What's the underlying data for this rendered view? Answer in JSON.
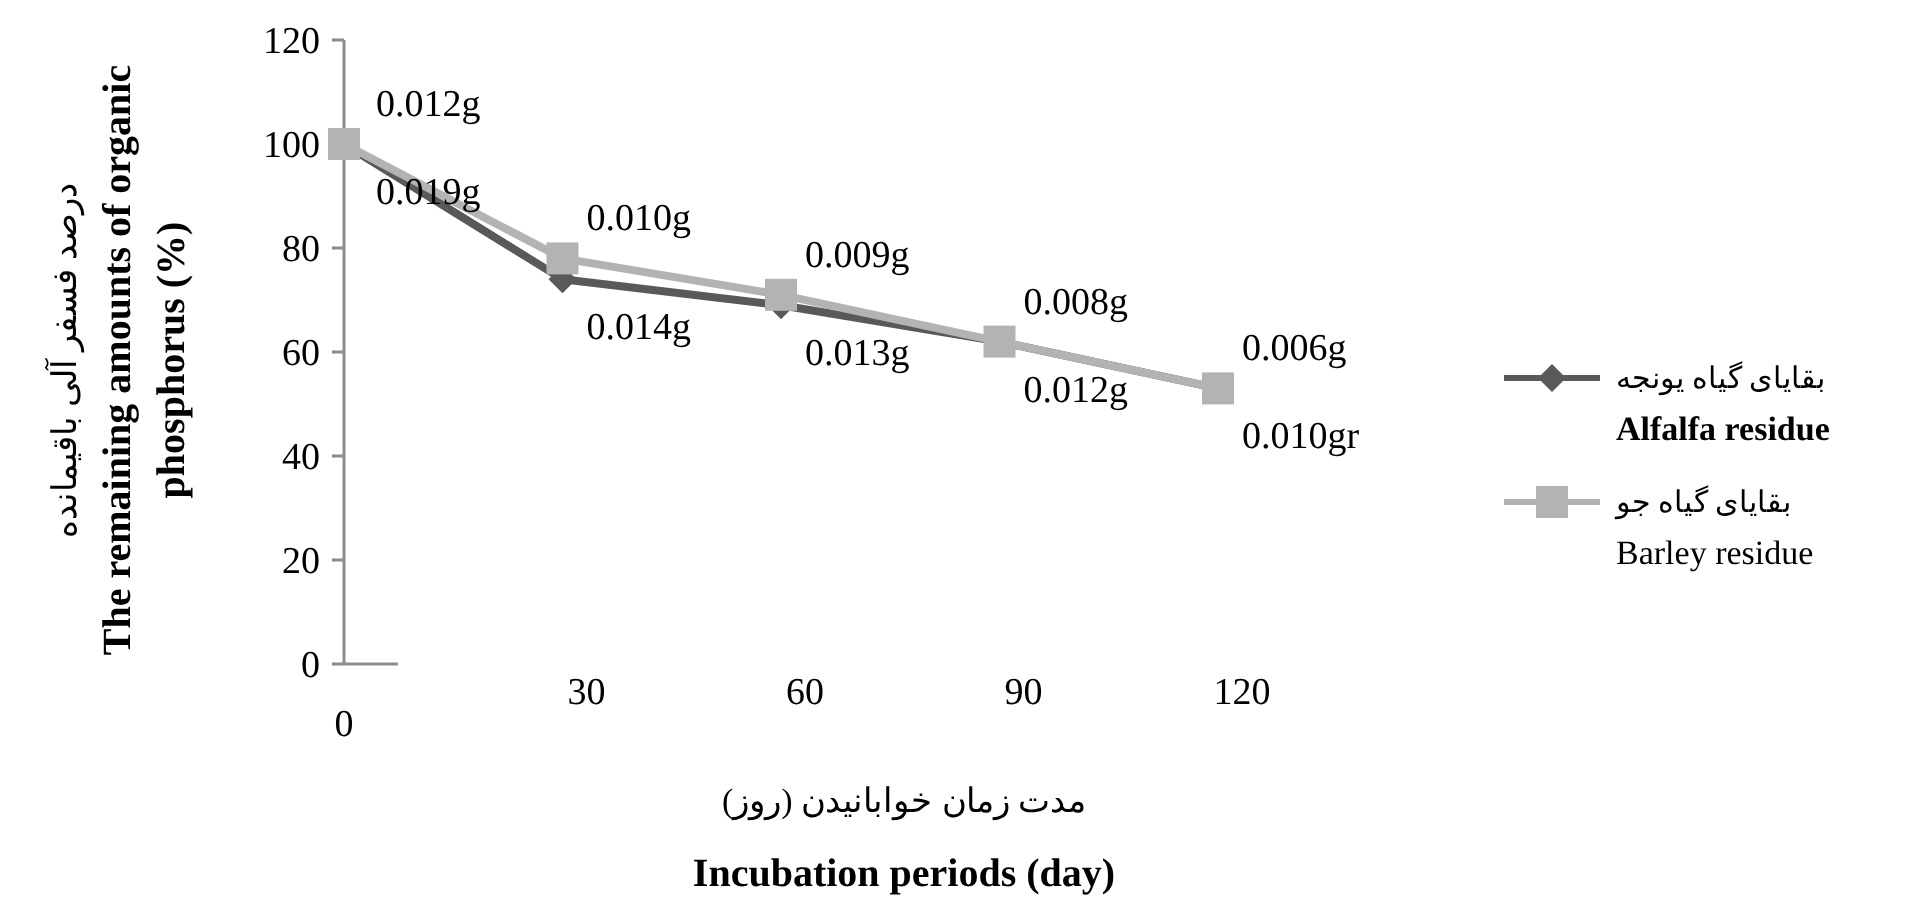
{
  "chart_data": {
    "type": "line",
    "categories": [
      "0",
      "30",
      "60",
      "90",
      "120"
    ],
    "xlabel": "مدت زمان خوابانیدن (روز)\nIncubation periods (day)",
    "ylabel": "درصد فسفر آلی باقیمانده\nThe remaining amounts of organic\nphosphorus (%)",
    "ylim": [
      0,
      120
    ],
    "yticks": [
      0,
      20,
      40,
      60,
      80,
      100,
      120
    ],
    "grid": false,
    "legend": "right",
    "series": [
      {
        "name": "بقایای گیاه یونجه\nAlfalfa residue",
        "color": "#595959",
        "marker": "diamond",
        "values": [
          100,
          74,
          69,
          62,
          53
        ]
      },
      {
        "name": "بقایای گیاه جو\nBarley residue",
        "color": "#b3b3b3",
        "marker": "square",
        "values": [
          100,
          78,
          71,
          62,
          53
        ]
      }
    ],
    "annotations": [
      {
        "text": "0.019g",
        "x": "0",
        "y": 100
      },
      {
        "text": "0.014g",
        "x": "30",
        "y": 74
      },
      {
        "text": "0.013g",
        "x": "60",
        "y": 69
      },
      {
        "text": "0.012g",
        "x": "90",
        "y": 62
      },
      {
        "text": "0.010gr",
        "x": "120",
        "y": 53
      },
      {
        "text": "0.012g",
        "x": "0",
        "y": 100
      },
      {
        "text": "0.010g",
        "x": "30",
        "y": 78
      },
      {
        "text": "0.009g",
        "x": "60",
        "y": 71
      },
      {
        "text": "0.008g",
        "x": "90",
        "y": 62
      },
      {
        "text": "0.006g",
        "x": "120",
        "y": 53
      }
    ]
  }
}
